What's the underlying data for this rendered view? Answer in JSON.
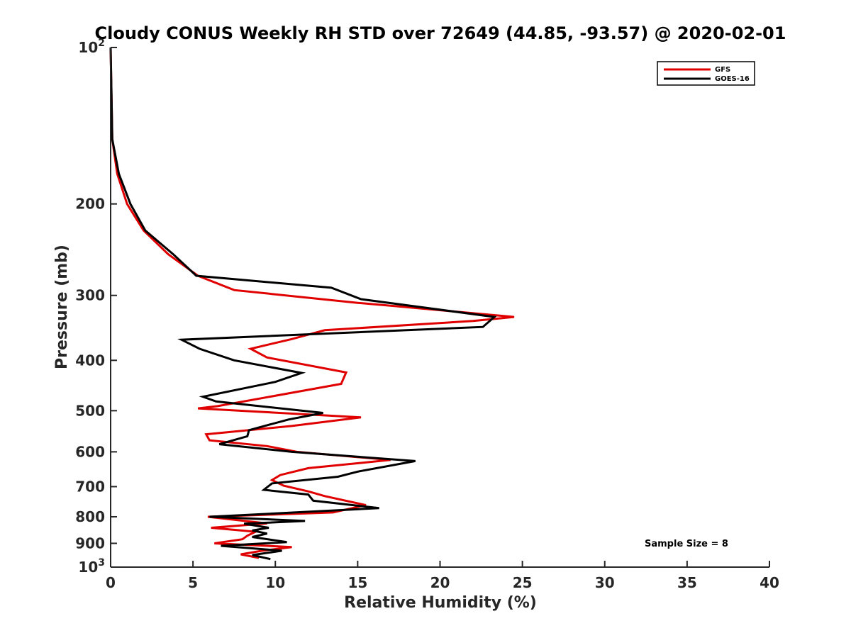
{
  "chart_data": {
    "type": "line",
    "title": "Cloudy CONUS Weekly RH STD over 72649 (44.85, -93.57) @ 2020-02-01",
    "xlabel": "Relative Humidity (%)",
    "ylabel": "Pressure (mb)",
    "xlim": [
      0,
      40
    ],
    "ylim": [
      100,
      1000
    ],
    "y_scale": "log",
    "y_reversed": true,
    "x_ticks": [
      "0",
      "5",
      "10",
      "15",
      "20",
      "25",
      "30",
      "35",
      "40"
    ],
    "y_ticks": [
      {
        "value": 100,
        "base": "10",
        "exp": "2"
      },
      {
        "value": 200,
        "label": "200"
      },
      {
        "value": 300,
        "label": "300"
      },
      {
        "value": 400,
        "label": "400"
      },
      {
        "value": 500,
        "label": "500"
      },
      {
        "value": 600,
        "label": "600"
      },
      {
        "value": 700,
        "label": "700"
      },
      {
        "value": 800,
        "label": "800"
      },
      {
        "value": 900,
        "label": "900"
      },
      {
        "value": 1000,
        "base": "10",
        "exp": "3"
      }
    ],
    "grid": false,
    "legend_position": "top-right",
    "annotation": "Sample Size = 8",
    "series": [
      {
        "name": "GFS",
        "color": "#e00000",
        "points": [
          [
            0.0,
            100
          ],
          [
            0.1,
            150
          ],
          [
            0.4,
            175
          ],
          [
            1.0,
            200
          ],
          [
            2.0,
            225
          ],
          [
            3.5,
            250
          ],
          [
            5.3,
            275
          ],
          [
            7.5,
            293
          ],
          [
            15.0,
            310
          ],
          [
            17.0,
            314
          ],
          [
            24.5,
            330
          ],
          [
            22.0,
            336
          ],
          [
            13.0,
            350
          ],
          [
            11.0,
            364
          ],
          [
            8.5,
            380
          ],
          [
            9.5,
            395
          ],
          [
            14.3,
            422
          ],
          [
            14.0,
            444
          ],
          [
            6.5,
            490
          ],
          [
            5.3,
            495
          ],
          [
            15.2,
            515
          ],
          [
            11.0,
            535
          ],
          [
            5.8,
            555
          ],
          [
            6.0,
            570
          ],
          [
            9.5,
            585
          ],
          [
            11.3,
            600
          ],
          [
            17.0,
            622
          ],
          [
            12.0,
            645
          ],
          [
            10.3,
            665
          ],
          [
            9.8,
            680
          ],
          [
            10.5,
            697
          ],
          [
            12.0,
            715
          ],
          [
            13.0,
            730
          ],
          [
            15.5,
            760
          ],
          [
            13.5,
            785
          ],
          [
            5.9,
            800
          ],
          [
            9.5,
            824
          ],
          [
            6.1,
            840
          ],
          [
            8.8,
            855
          ],
          [
            8.3,
            870
          ],
          [
            8.0,
            884
          ],
          [
            6.3,
            900
          ],
          [
            11.0,
            915
          ],
          [
            9.2,
            930
          ],
          [
            7.9,
            945
          ],
          [
            9.0,
            960
          ]
        ]
      },
      {
        "name": "GOES-16",
        "color": "#000000",
        "points": [
          [
            0.0,
            100
          ],
          [
            0.1,
            150
          ],
          [
            0.5,
            175
          ],
          [
            1.2,
            200
          ],
          [
            2.1,
            225
          ],
          [
            3.8,
            250
          ],
          [
            5.2,
            275
          ],
          [
            13.4,
            290
          ],
          [
            15.2,
            305
          ],
          [
            23.3,
            330
          ],
          [
            22.6,
            345
          ],
          [
            4.3,
            365
          ],
          [
            5.4,
            380
          ],
          [
            7.5,
            400
          ],
          [
            11.6,
            423
          ],
          [
            10.0,
            440
          ],
          [
            5.6,
            470
          ],
          [
            6.4,
            480
          ],
          [
            12.9,
            505
          ],
          [
            10.8,
            520
          ],
          [
            8.4,
            545
          ],
          [
            8.3,
            560
          ],
          [
            6.6,
            580
          ],
          [
            11.0,
            600
          ],
          [
            18.5,
            625
          ],
          [
            15.0,
            655
          ],
          [
            13.8,
            670
          ],
          [
            9.8,
            690
          ],
          [
            9.3,
            710
          ],
          [
            12.0,
            725
          ],
          [
            12.3,
            745
          ],
          [
            16.3,
            770
          ],
          [
            6.0,
            800
          ],
          [
            11.8,
            815
          ],
          [
            8.1,
            825
          ],
          [
            9.6,
            840
          ],
          [
            8.6,
            850
          ],
          [
            9.5,
            862
          ],
          [
            8.6,
            875
          ],
          [
            10.7,
            895
          ],
          [
            6.7,
            910
          ],
          [
            10.4,
            930
          ],
          [
            8.6,
            948
          ],
          [
            9.7,
            965
          ]
        ]
      }
    ]
  }
}
